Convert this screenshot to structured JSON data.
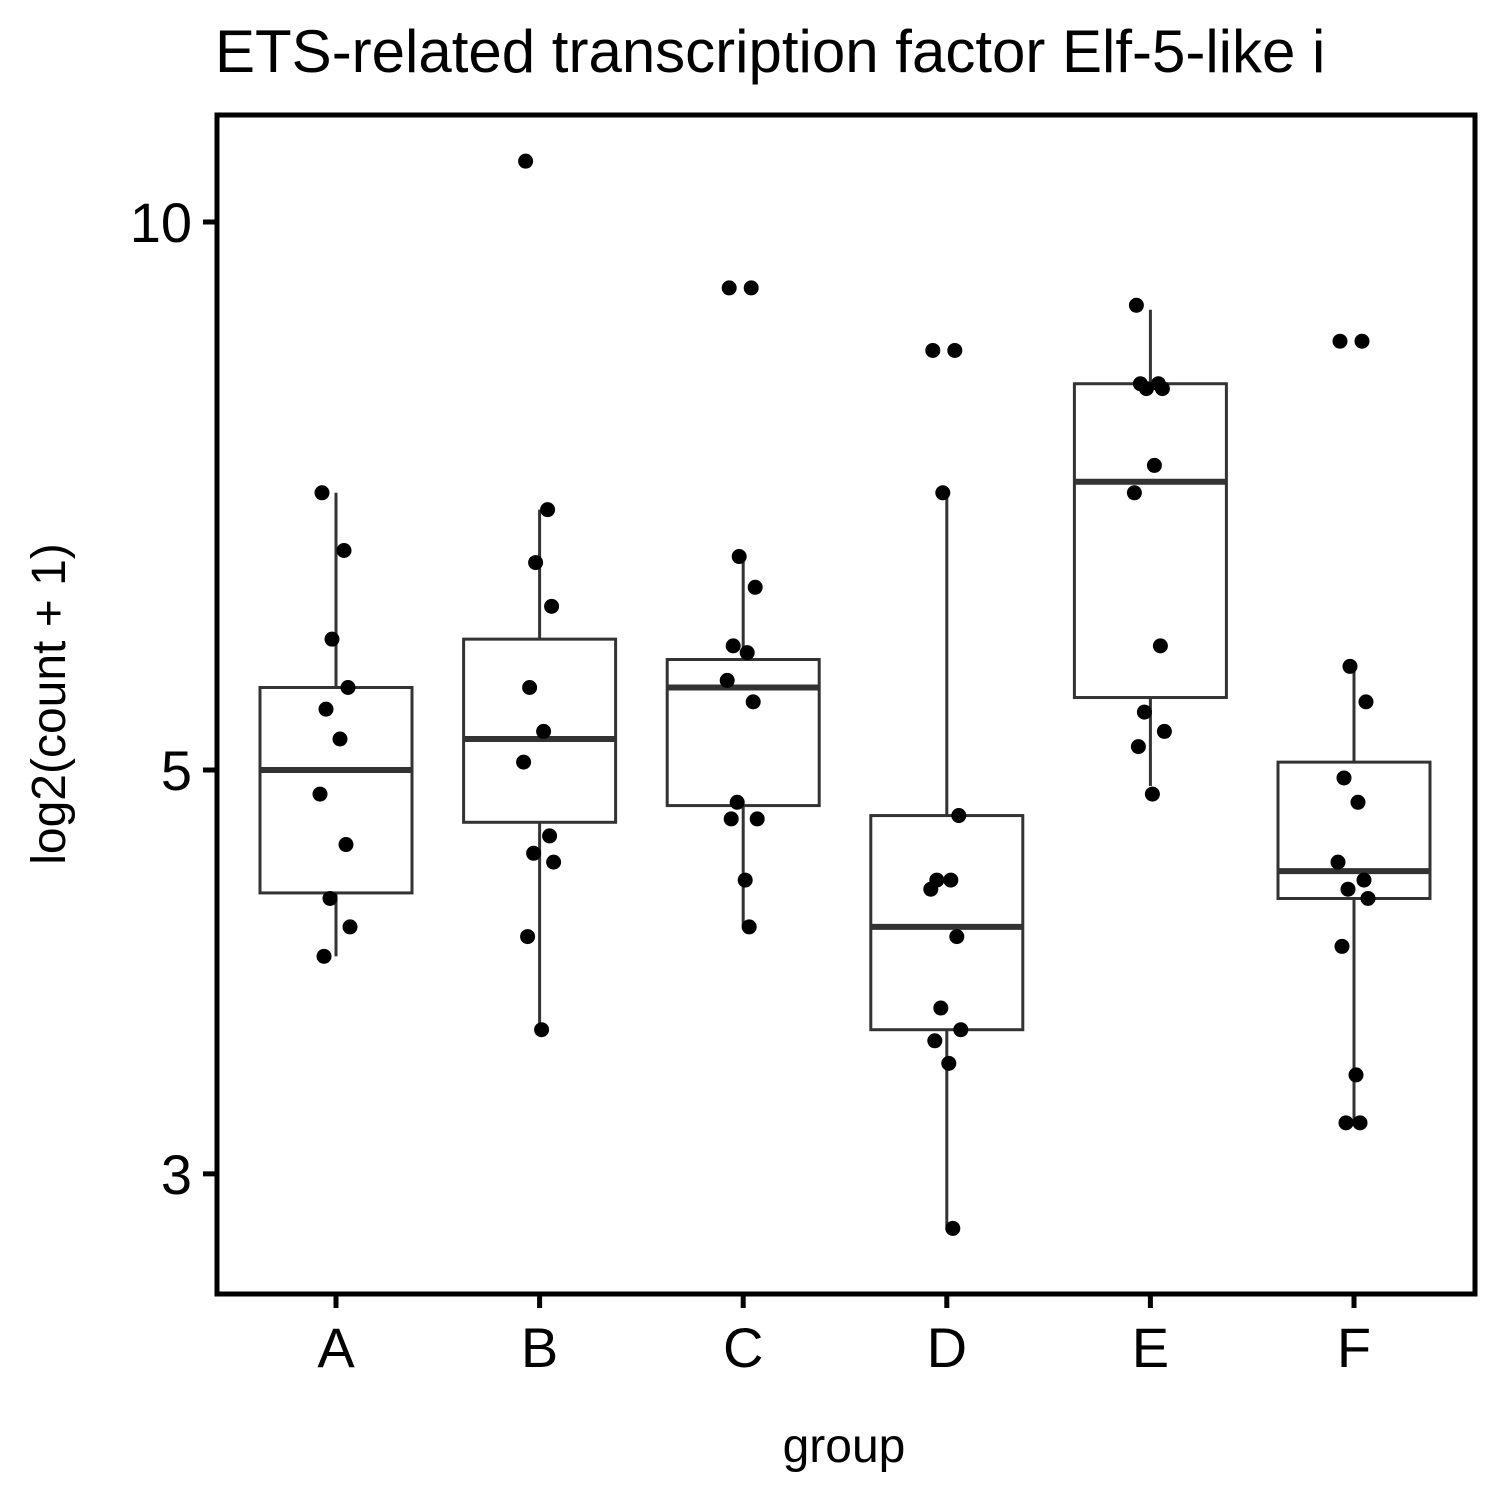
{
  "chart_data": {
    "type": "box",
    "title": "ETS-related transcription factor Elf-5-like i",
    "xlabel": "group",
    "ylabel": "log2(count + 1)",
    "y_scale": "log",
    "ylim": [
      2.6,
      11.3
    ],
    "yticks": [
      3,
      5,
      10
    ],
    "ytick_labels": [
      "3",
      "5",
      "10"
    ],
    "categories": [
      "A",
      "B",
      "C",
      "D",
      "E",
      "F"
    ],
    "boxes": [
      {
        "group": "A",
        "whisker_low": 3.95,
        "q1": 4.28,
        "median": 5.0,
        "q3": 5.55,
        "whisker_high": 7.1
      },
      {
        "group": "B",
        "whisker_low": 3.6,
        "q1": 4.68,
        "median": 5.2,
        "q3": 5.9,
        "whisker_high": 6.95
      },
      {
        "group": "C",
        "whisker_low": 4.1,
        "q1": 4.78,
        "median": 5.55,
        "q3": 5.75,
        "whisker_high": 6.55
      },
      {
        "group": "D",
        "whisker_low": 2.8,
        "q1": 3.6,
        "median": 4.1,
        "q3": 4.72,
        "whisker_high": 7.1
      },
      {
        "group": "E",
        "whisker_low": 4.9,
        "q1": 5.48,
        "median": 7.2,
        "q3": 8.15,
        "whisker_high": 8.95
      },
      {
        "group": "F",
        "whisker_low": 3.2,
        "q1": 4.25,
        "median": 4.4,
        "q3": 5.05,
        "whisker_high": 5.7
      }
    ],
    "points": [
      {
        "group": "A",
        "values": [
          7.1,
          6.6,
          5.9,
          5.55,
          5.4,
          5.2,
          4.85,
          4.55,
          4.25,
          4.1,
          3.95
        ]
      },
      {
        "group": "B",
        "values": [
          10.8,
          6.95,
          6.5,
          6.15,
          5.55,
          5.25,
          5.05,
          4.6,
          4.5,
          4.45,
          4.05,
          3.6
        ]
      },
      {
        "group": "C",
        "values": [
          9.2,
          9.2,
          6.55,
          6.3,
          5.85,
          5.8,
          5.6,
          5.45,
          4.8,
          4.7,
          4.7,
          4.35,
          4.1
        ]
      },
      {
        "group": "D",
        "values": [
          8.5,
          8.5,
          7.1,
          4.72,
          4.35,
          4.35,
          4.3,
          4.05,
          3.7,
          3.6,
          3.55,
          3.45,
          2.8
        ]
      },
      {
        "group": "E",
        "values": [
          9.0,
          8.15,
          8.1,
          8.1,
          8.15,
          7.35,
          7.1,
          5.85,
          5.38,
          5.25,
          5.15,
          4.85
        ]
      },
      {
        "group": "F",
        "values": [
          8.6,
          8.6,
          5.7,
          5.45,
          4.95,
          4.8,
          4.45,
          4.35,
          4.3,
          4.25,
          4.0,
          3.4,
          3.2,
          3.2
        ]
      }
    ],
    "grid": false,
    "legend": "none"
  }
}
